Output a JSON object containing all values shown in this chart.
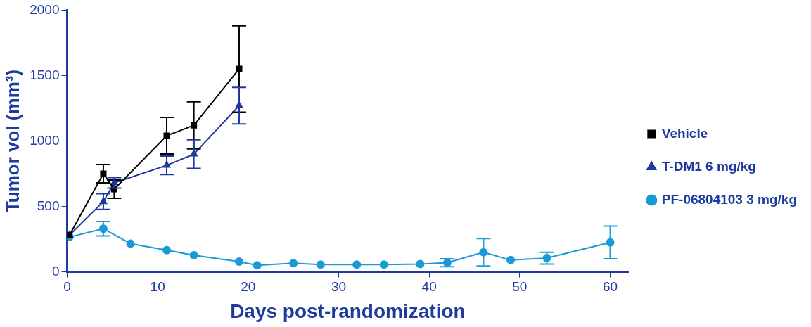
{
  "chart_data": {
    "type": "line",
    "xlabel": "Days post-randomization",
    "ylabel": "Tumor vol (mm³)",
    "xlim": [
      0,
      62
    ],
    "xticks": [
      0,
      10,
      20,
      30,
      40,
      50,
      60
    ],
    "ylim": [
      0,
      2000
    ],
    "yticks": [
      0,
      500,
      1000,
      1500,
      2000
    ],
    "grid": false,
    "legend": "right",
    "line_style": "solid",
    "series": [
      {
        "name": "Vehicle",
        "color": "#000000",
        "marker": "square",
        "x": [
          0.25,
          4,
          5.2,
          11,
          14,
          19
        ],
        "values": [
          280,
          750,
          632,
          1040,
          1120,
          1550
        ],
        "errors": [
          null,
          70,
          70,
          140,
          180,
          330
        ]
      },
      {
        "name": "T-DM1 6 mg/kg",
        "color": "#1f3a9e",
        "marker": "triangle",
        "x": [
          0.25,
          4,
          5.2,
          11,
          14,
          19
        ],
        "values": [
          280,
          537,
          680,
          814,
          900,
          1270
        ],
        "errors": [
          null,
          60,
          40,
          70,
          110,
          140
        ]
      },
      {
        "name": "PF-06804103 3 mg/kg",
        "color": "#1a9ad6",
        "marker": "circle",
        "x": [
          0.25,
          4,
          7,
          11,
          14,
          19,
          21,
          25,
          28,
          32,
          35,
          39,
          42,
          46,
          49,
          53,
          60
        ],
        "values": [
          266,
          330,
          216,
          166,
          127,
          78,
          50,
          66,
          55,
          55,
          55,
          60,
          70,
          150,
          90,
          105,
          225
        ],
        "errors": [
          null,
          55,
          null,
          null,
          null,
          null,
          null,
          null,
          null,
          null,
          null,
          null,
          30,
          105,
          null,
          45,
          125
        ]
      }
    ]
  }
}
